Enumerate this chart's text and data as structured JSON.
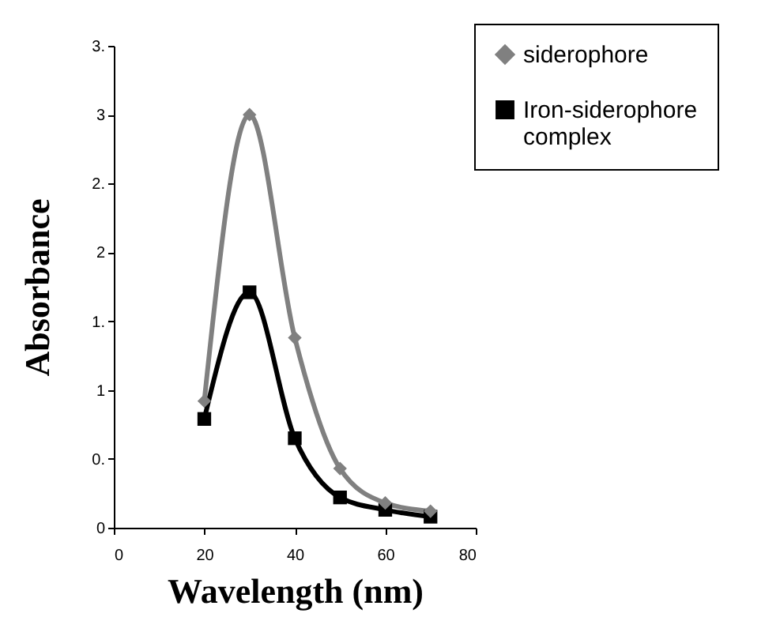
{
  "chart_data": {
    "type": "line",
    "xlabel": "Wavelength (nm)",
    "ylabel": "Absorbance",
    "x": [
      20,
      30,
      40,
      50,
      60,
      70
    ],
    "series": [
      {
        "name": "siderophore",
        "color": "#808080",
        "marker": "diamond",
        "values": [
          0.92,
          3.0,
          1.38,
          0.43,
          0.18,
          0.12
        ]
      },
      {
        "name": "Iron-siderophore complex",
        "color": "#000000",
        "marker": "square",
        "values": [
          0.79,
          1.71,
          0.65,
          0.22,
          0.13,
          0.08
        ]
      }
    ],
    "xlim": [
      0,
      80
    ],
    "xticks": [
      0,
      20,
      40,
      60,
      80
    ],
    "ylim": [
      0,
      3.5
    ],
    "yticks": [
      0,
      {
        "value": 0.5,
        "label": "0."
      },
      1,
      {
        "value": 1.5,
        "label": "1."
      },
      2,
      {
        "value": 2.5,
        "label": "2."
      },
      3,
      {
        "value": 3.5,
        "label": "3."
      }
    ],
    "grid": false,
    "legend": "top right",
    "line_style": "solid"
  }
}
